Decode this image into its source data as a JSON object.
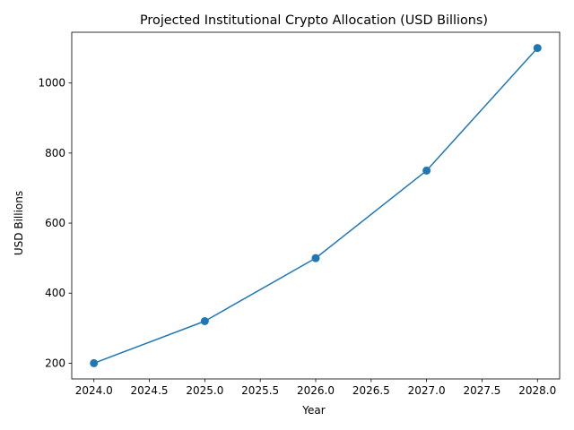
{
  "chart_data": {
    "type": "line",
    "title": "Projected Institutional Crypto Allocation (USD Billions)",
    "xlabel": "Year",
    "ylabel": "USD Billions",
    "x": [
      2024,
      2025,
      2026,
      2027,
      2028
    ],
    "series": [
      {
        "values": [
          200,
          320,
          500,
          750,
          1100
        ],
        "color": "#1f77b4",
        "marker": "circle"
      }
    ],
    "xlim": [
      2023.8,
      2028.2
    ],
    "ylim": [
      155,
      1145
    ],
    "xticks": [
      "2024.0",
      "2024.5",
      "2025.0",
      "2025.5",
      "2026.0",
      "2026.5",
      "2027.0",
      "2027.5",
      "2028.0"
    ],
    "yticks": [
      "200",
      "400",
      "600",
      "800",
      "1000"
    ],
    "grid": false,
    "legend": "none"
  }
}
